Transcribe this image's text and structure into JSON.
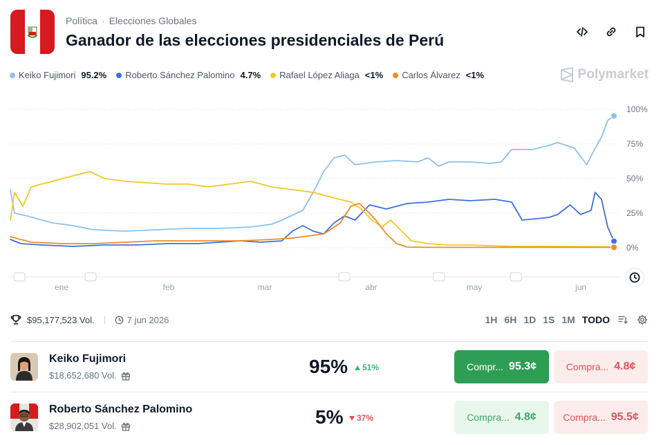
{
  "header": {
    "breadcrumb": [
      "Política",
      "Elecciones Globales"
    ],
    "breadcrumb_sep": "·",
    "title": "Ganador de las elecciones presidenciales de Perú"
  },
  "brand": "Polymarket",
  "legend": [
    {
      "name": "Keiko Fujimori",
      "value": "95.2%",
      "color": "#8ec1ec"
    },
    {
      "name": "Roberto Sánchez Palomino",
      "value": "4.7%",
      "color": "#3f6fe0"
    },
    {
      "name": "Rafael López Aliaga",
      "value": "<1%",
      "color": "#f2c824"
    },
    {
      "name": "Carlos Álvarez",
      "value": "<1%",
      "color": "#f08a24"
    }
  ],
  "chart_data": {
    "type": "line",
    "x_ticks": [
      "ene",
      "feb",
      "mar",
      "abr",
      "may",
      "jun"
    ],
    "y_ticks": [
      "100%",
      "75%",
      "50%",
      "25%",
      "0%"
    ],
    "ylim": [
      0,
      100
    ],
    "grid": true,
    "series": [
      {
        "name": "Keiko Fujimori",
        "color": "#8ec1ec",
        "points": [
          [
            0,
            42
          ],
          [
            2,
            25
          ],
          [
            8,
            23
          ],
          [
            20,
            18
          ],
          [
            30,
            16
          ],
          [
            40,
            13
          ],
          [
            55,
            12
          ],
          [
            70,
            13
          ],
          [
            85,
            14
          ],
          [
            100,
            14
          ],
          [
            115,
            15
          ],
          [
            125,
            17
          ],
          [
            130,
            20
          ],
          [
            140,
            27
          ],
          [
            145,
            40
          ],
          [
            150,
            55
          ],
          [
            155,
            65
          ],
          [
            160,
            67
          ],
          [
            165,
            60
          ],
          [
            175,
            62
          ],
          [
            185,
            63
          ],
          [
            195,
            62
          ],
          [
            200,
            65
          ],
          [
            205,
            59
          ],
          [
            210,
            62
          ],
          [
            220,
            62
          ],
          [
            230,
            61
          ],
          [
            235,
            62
          ],
          [
            240,
            71
          ],
          [
            250,
            71
          ],
          [
            258,
            74
          ],
          [
            262,
            76
          ],
          [
            270,
            72
          ],
          [
            276,
            60
          ],
          [
            280,
            72
          ],
          [
            283,
            80
          ],
          [
            286,
            92
          ],
          [
            289,
            95.2
          ]
        ]
      },
      {
        "name": "Roberto Sánchez Palomino",
        "color": "#3f6fe0",
        "points": [
          [
            0,
            6
          ],
          [
            5,
            3
          ],
          [
            15,
            2
          ],
          [
            30,
            1
          ],
          [
            45,
            2
          ],
          [
            60,
            2
          ],
          [
            75,
            3
          ],
          [
            90,
            3
          ],
          [
            100,
            4
          ],
          [
            110,
            5
          ],
          [
            120,
            4
          ],
          [
            130,
            5
          ],
          [
            135,
            12
          ],
          [
            140,
            16
          ],
          [
            145,
            12
          ],
          [
            150,
            10
          ],
          [
            155,
            18
          ],
          [
            160,
            23
          ],
          [
            165,
            20
          ],
          [
            172,
            31
          ],
          [
            180,
            28
          ],
          [
            190,
            32
          ],
          [
            200,
            33
          ],
          [
            210,
            35
          ],
          [
            220,
            34
          ],
          [
            232,
            35
          ],
          [
            240,
            33
          ],
          [
            245,
            20
          ],
          [
            252,
            21
          ],
          [
            258,
            22
          ],
          [
            262,
            24
          ],
          [
            268,
            31
          ],
          [
            273,
            24
          ],
          [
            278,
            27
          ],
          [
            280,
            40
          ],
          [
            283,
            35
          ],
          [
            286,
            15
          ],
          [
            289,
            4.7
          ]
        ]
      },
      {
        "name": "Rafael López Aliaga",
        "color": "#f2c824",
        "points": [
          [
            0,
            20
          ],
          [
            2,
            40
          ],
          [
            6,
            30
          ],
          [
            10,
            44
          ],
          [
            20,
            48
          ],
          [
            30,
            52
          ],
          [
            38,
            55
          ],
          [
            45,
            50
          ],
          [
            55,
            48
          ],
          [
            65,
            47
          ],
          [
            75,
            46
          ],
          [
            85,
            46
          ],
          [
            95,
            44
          ],
          [
            105,
            46
          ],
          [
            115,
            48
          ],
          [
            125,
            44
          ],
          [
            135,
            42
          ],
          [
            145,
            40
          ],
          [
            155,
            36
          ],
          [
            163,
            33
          ],
          [
            168,
            28
          ],
          [
            173,
            20
          ],
          [
            178,
            15
          ],
          [
            182,
            20
          ],
          [
            186,
            14
          ],
          [
            192,
            5
          ],
          [
            200,
            3
          ],
          [
            210,
            2
          ],
          [
            220,
            2
          ],
          [
            240,
            1
          ],
          [
            260,
            1
          ],
          [
            275,
            0.8
          ],
          [
            289,
            0.6
          ]
        ]
      },
      {
        "name": "Carlos Álvarez",
        "color": "#f08a24",
        "points": [
          [
            0,
            8
          ],
          [
            10,
            4
          ],
          [
            25,
            3
          ],
          [
            40,
            3
          ],
          [
            55,
            4
          ],
          [
            70,
            5
          ],
          [
            85,
            5
          ],
          [
            100,
            5
          ],
          [
            110,
            5
          ],
          [
            125,
            6
          ],
          [
            135,
            7
          ],
          [
            150,
            10
          ],
          [
            158,
            18
          ],
          [
            163,
            30
          ],
          [
            167,
            32
          ],
          [
            170,
            28
          ],
          [
            175,
            20
          ],
          [
            180,
            10
          ],
          [
            185,
            3
          ],
          [
            190,
            0.5
          ],
          [
            200,
            0.3
          ],
          [
            220,
            0.3
          ],
          [
            240,
            0.3
          ],
          [
            260,
            0.3
          ],
          [
            289,
            0.3
          ]
        ]
      }
    ]
  },
  "stats": {
    "volume": "$95,177,523 Vol.",
    "date": "7 jun 2026"
  },
  "ranges": [
    "1H",
    "6H",
    "1D",
    "1S",
    "1M",
    "TODO"
  ],
  "active_range": "TODO",
  "outcomes": [
    {
      "name": "Keiko Fujimori",
      "volume": "$18,652,680 Vol.",
      "probability": "95%",
      "change": "51%",
      "change_dir": "up",
      "buy_label": "Compr...",
      "buy_price": "95.3¢",
      "sell_label": "Compra...",
      "sell_price": "4.8¢"
    },
    {
      "name": "Roberto Sánchez Palomino",
      "volume": "$28,902,051 Vol.",
      "probability": "5%",
      "change": "37%",
      "change_dir": "down",
      "buy_label": "Compra...",
      "buy_price": "4.8¢",
      "sell_label": "Compra...",
      "sell_price": "95.5¢"
    }
  ]
}
